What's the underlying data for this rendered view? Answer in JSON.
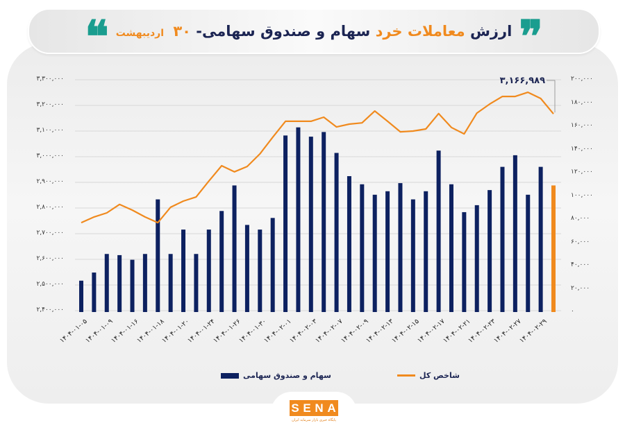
{
  "title": {
    "part1": "ارزش",
    "part2": "معاملات خرد",
    "part3": "سهام و صندوق سهامی-",
    "day": "۳۰",
    "month": "اردیبهشت",
    "open_quote": "❞",
    "close_quote": "❝"
  },
  "colors": {
    "bars": "#0d2160",
    "last_bar": "#f08a1e",
    "line": "#f08a1e",
    "title_navy": "#1c2553",
    "title_orange": "#f08a1e",
    "quote_teal": "#1a9d8f"
  },
  "annotation": {
    "label": "۳,۱۶۶,۹۸۹"
  },
  "legend": {
    "bars": "سهام و صندوق سهامی",
    "line": "شاخص کل"
  },
  "logo": {
    "letters": [
      "S",
      "E",
      "N",
      "A"
    ],
    "subtitle": "پایگاه خبری بازار سرمایه ایران"
  },
  "left_axis_labels": [
    "۳,۳۰۰,۰۰۰",
    "۳,۲۰۰,۰۰۰",
    "۳,۱۰۰,۰۰۰",
    "۳,۰۰۰,۰۰۰",
    "۲,۹۰۰,۰۰۰",
    "۲,۸۰۰,۰۰۰",
    "۲,۷۰۰,۰۰۰",
    "۲,۶۰۰,۰۰۰",
    "۲,۵۰۰,۰۰۰",
    "۲,۴۰۰,۰۰۰"
  ],
  "right_axis_labels": [
    "۲۰۰,۰۰۰",
    "۱۸۰,۰۰۰",
    "۱۶۰,۰۰۰",
    "۱۴۰,۰۰۰",
    "۱۲۰,۰۰۰",
    "۱۰۰,۰۰۰",
    "۸۰,۰۰۰",
    "۶۰,۰۰۰",
    "۴۰,۰۰۰",
    "۲۰,۰۰۰",
    "۰"
  ],
  "x_axis_labels": [
    "۱۴۰۴-۰۱-۰۵",
    "۱۴۰۴-۰۱-۰۹",
    "۱۴۰۴-۰۱-۱۶",
    "۱۴۰۴-۰۱-۱۸",
    "۱۴۰۴-۰۱-۲۰",
    "۱۴۰۴-۰۱-۲۴",
    "۱۴۰۴-۰۱-۲۶",
    "۱۴۰۴-۰۱-۳۰",
    "۱۴۰۴-۰۲-۰۱",
    "۱۴۰۴-۰۲-۰۳",
    "۱۴۰۴-۰۲-۰۷",
    "۱۴۰۴-۰۲-۰۹",
    "۱۴۰۴-۰۲-۱۳",
    "۱۴۰۴-۰۲-۱۵",
    "۱۴۰۴-۰۲-۱۷",
    "۱۴۰۴-۰۲-۲۱",
    "۱۴۰۴-۰۲-۲۳",
    "۱۴۰۴-۰۲-۲۷",
    "۱۴۰۴-۰۲-۲۹"
  ],
  "chart_data": {
    "type": "bar",
    "title": "ارزش معاملات خرد سهام و صندوق سهامی- ۳۰ اردیبهشت",
    "xlabel": "",
    "ylabel_left": "شاخص کل",
    "ylabel_right": "ارزش معاملات خرد سهام و صندوق سهامی",
    "ylim_left": [
      2400000,
      3300000
    ],
    "ylim_right": [
      0,
      200000
    ],
    "grid": true,
    "legend_position": "bottom",
    "x_tick_labels_shown": [
      "1404-01-05",
      "1404-01-09",
      "1404-01-16",
      "1404-01-18",
      "1404-01-20",
      "1404-01-24",
      "1404-01-26",
      "1404-01-30",
      "1404-02-01",
      "1404-02-03",
      "1404-02-07",
      "1404-02-09",
      "1404-02-13",
      "1404-02-15",
      "1404-02-17",
      "1404-02-21",
      "1404-02-23",
      "1404-02-27",
      "1404-02-29"
    ],
    "n_points": 38,
    "series": [
      {
        "name": "سهام و صندوق سهامی",
        "type": "bar",
        "axis": "right",
        "color": "#0d2160",
        "values": [
          27000,
          34000,
          50000,
          49000,
          45000,
          50000,
          97000,
          50000,
          71000,
          50000,
          71000,
          87000,
          109000,
          75000,
          71000,
          81000,
          152000,
          159000,
          151000,
          155000,
          137000,
          117000,
          110000,
          101000,
          104000,
          111000,
          97000,
          104000,
          139000,
          110000,
          86000,
          92000,
          105000,
          125000,
          135000,
          101000,
          125000,
          109000
        ]
      },
      {
        "name": "شاخص کل",
        "type": "line",
        "axis": "left",
        "color": "#f08a1e",
        "values": [
          2743000,
          2765000,
          2781000,
          2814000,
          2792000,
          2765000,
          2743000,
          2803000,
          2827000,
          2843000,
          2905000,
          2965000,
          2941000,
          2962000,
          3011000,
          3076000,
          3138000,
          3138000,
          3138000,
          3154000,
          3116000,
          3127000,
          3132000,
          3178000,
          3138000,
          3097000,
          3100000,
          3108000,
          3168000,
          3114000,
          3089000,
          3170000,
          3205000,
          3235000,
          3235000,
          3251000,
          3227000,
          3166989
        ]
      }
    ],
    "annotations": [
      {
        "point_index": 37,
        "series": "شاخص کل",
        "text": "3,166,989"
      }
    ]
  }
}
